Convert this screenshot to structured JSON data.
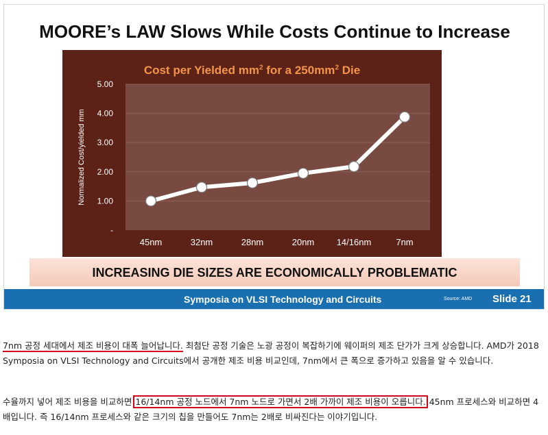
{
  "slide": {
    "title": "MOORE’s LAW Slows While Costs Continue to Increase",
    "banner": "INCREASING DIE SIZES ARE ECONOMICALLY PROBLEMATIC",
    "footer": {
      "conference": "Symposia on VLSI Technology and Circuits",
      "source": "Source: AMD",
      "slide_number": "Slide 21"
    }
  },
  "chart_data": {
    "type": "line",
    "title_parts": {
      "a": "Cost per Yielded mm",
      "sup1": "2",
      "b": " for a 250mm",
      "sup2": "2",
      "c": " Die"
    },
    "ylabel": "Normalized Cost/yielded mm",
    "xlabel": "",
    "categories": [
      "45nm",
      "32nm",
      "28nm",
      "20nm",
      "14/16nm",
      "7nm"
    ],
    "values": [
      1.0,
      1.47,
      1.62,
      1.95,
      2.18,
      3.88
    ],
    "yticks": [
      "-",
      "1.00",
      "2.00",
      "3.00",
      "4.00",
      "5.00"
    ],
    "ylim": [
      0,
      5
    ],
    "grid": true,
    "legend": "none",
    "colors": {
      "panel": "#5c2117",
      "plot": "#794a42",
      "grid": "#8e625a",
      "line": "#ffffff",
      "marker_stroke": "#777777",
      "title": "#f3954a",
      "tick_text": "#ffffff"
    }
  },
  "article": {
    "p1_highlight": "7nm 공정 세대에서 제조 비용이 대폭 늘어납니다.",
    "p1_rest": " 최첨단 공정 기술은 노광 공정이 복잡하기에 웨이퍼의 제조 단가가 크게 상승합니다. AMD가 2018 Symposia on VLSI Technology and Circuits에서 공개한 제조 비용 비교인데, 7nm에서 큰 폭으로 증가하고 있음을 알 수 있습니다.",
    "p2_before": "수율까지 넣어 제조 비용을 비교하면 ",
    "p2_boxed": "16/14nm 공정 노드에서 7nm 노드로 가면서 2배 가까이 제조 비용이 오릅니다.",
    "p2_after": " 45nm 프로세스와 비교하면 4배입니다. 즉 16/14nm 프로세스와 같은 크기의 칩을 만들어도 7nm는 2배로 비싸진다는 이야기입니다."
  }
}
